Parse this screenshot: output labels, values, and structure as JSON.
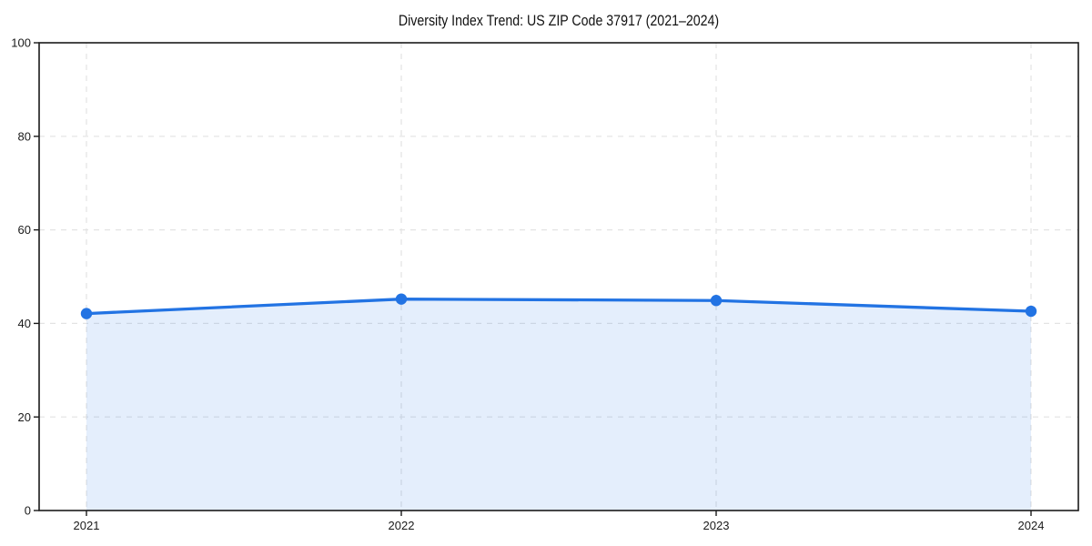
{
  "chart_data": {
    "type": "area",
    "title": "Diversity Index Trend: US ZIP Code 37917 (2021–2024)",
    "categories": [
      "2021",
      "2022",
      "2023",
      "2024"
    ],
    "series": [
      {
        "name": "Diversity Index",
        "values": [
          42.1,
          45.2,
          44.9,
          42.6
        ]
      }
    ],
    "xlabel": "",
    "ylabel": "",
    "ylim": [
      0,
      100
    ],
    "yticks": [
      0,
      20,
      40,
      60,
      80,
      100
    ],
    "grid": "dashed",
    "legend": "none",
    "colors": {
      "line": "#2273e3",
      "marker": "#2273e3",
      "fill_rgba": "rgba(34,115,227,0.12)",
      "grid": "#e3e3e3",
      "spine": "#1a1a1a",
      "tick_text": "#1a1a1a",
      "background": "#ffffff"
    }
  }
}
